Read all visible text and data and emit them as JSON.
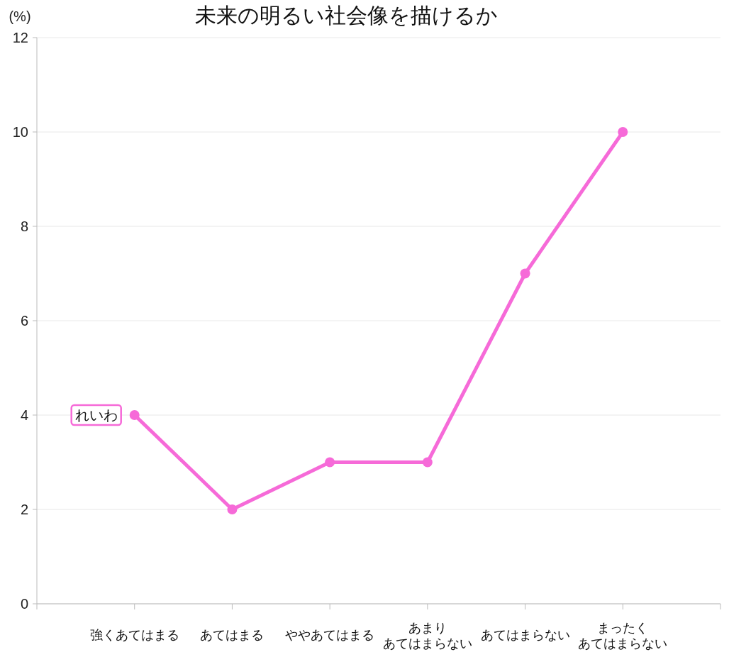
{
  "chart_data": {
    "type": "line",
    "title": "未来の明るい社会像を描けるか",
    "ylabel": "(%)",
    "categories": [
      "強くあてはまる",
      "あてはまる",
      "ややあてはまる",
      "あまりあてはまらない",
      "あてはまらない",
      "まったくあてはまらない"
    ],
    "series": [
      {
        "name": "れいわ",
        "color": "#f66ad8",
        "values": [
          4,
          2,
          3,
          3,
          7,
          10
        ]
      }
    ],
    "ylim": [
      0,
      12
    ],
    "yticks": [
      0,
      2,
      4,
      6,
      8,
      10,
      12
    ],
    "grid": "y",
    "legend": false,
    "marker": "circle"
  }
}
